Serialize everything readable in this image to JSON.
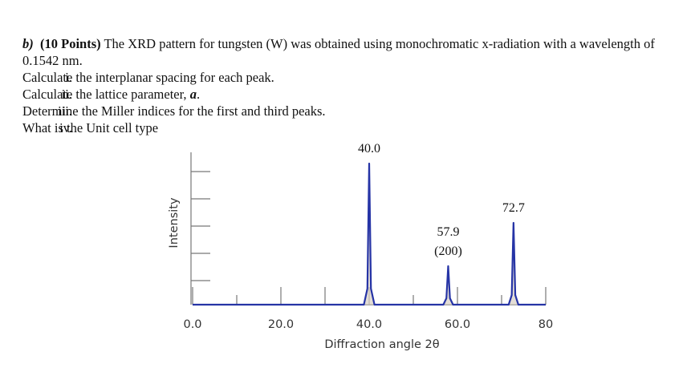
{
  "question": {
    "label": "b)",
    "points": "(10 Points)",
    "text": "The XRD pattern for tungsten (W) was obtained using monochromatic x-radiation with a wavelength of 0.1542 nm.",
    "items": [
      {
        "numeral": "i.",
        "text": "Calculate the interplanar spacing for each peak."
      },
      {
        "numeral": "ii.",
        "text": "Calculate the lattice parameter,",
        "emphasis": "a",
        "tail": "."
      },
      {
        "numeral": "iii.",
        "text": "Determine the Miller indices for the first and third peaks."
      },
      {
        "numeral": "iv.",
        "text": "What is the Unit cell type"
      }
    ]
  },
  "chart_data": {
    "type": "line",
    "x_label": "Diffraction angle 2θ",
    "y_label": "Intensity",
    "xlim": [
      0,
      80
    ],
    "ylim": [
      0,
      100
    ],
    "xticks": [
      {
        "value": 0,
        "label": "0.0"
      },
      {
        "value": 20,
        "label": "20.0"
      },
      {
        "value": 40,
        "label": "40.0"
      },
      {
        "value": 60,
        "label": "60.0"
      },
      80
    ],
    "series": [
      {
        "name": "Intensity",
        "color": "#2634a6",
        "x": [
          0,
          38.8,
          39.6,
          40.0,
          40.4,
          41.2,
          56.8,
          57.5,
          57.9,
          58.3,
          59.0,
          71.6,
          72.3,
          72.7,
          73.1,
          73.8,
          80
        ],
        "values": [
          0,
          0,
          10,
          88,
          10,
          0,
          0,
          4,
          24,
          4,
          0,
          0,
          6,
          51,
          6,
          0,
          0
        ]
      }
    ],
    "peak_labels": [
      [
        "40.0"
      ],
      [
        "57.9",
        "(200)"
      ],
      [
        "72.7"
      ]
    ]
  }
}
